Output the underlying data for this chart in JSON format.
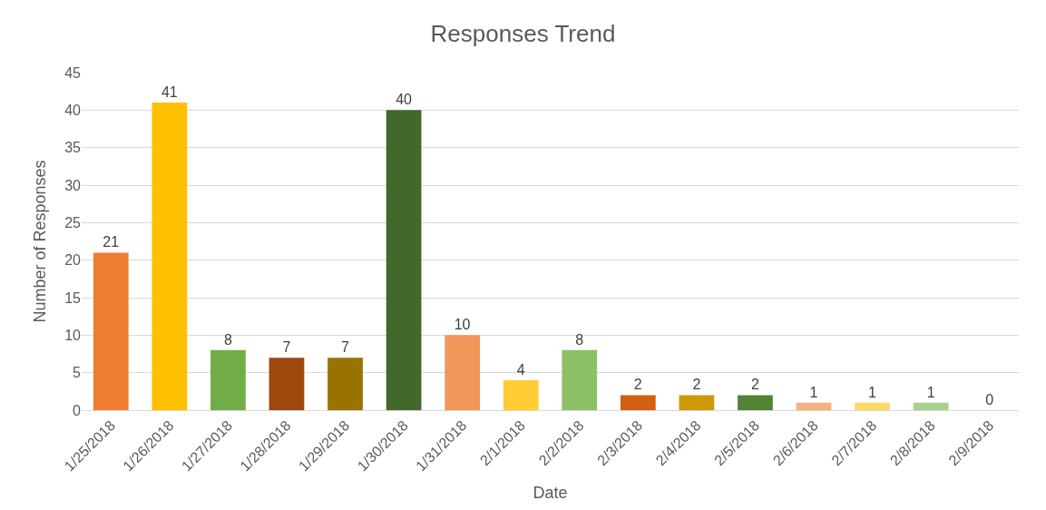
{
  "chart_data": {
    "type": "bar",
    "title": "Responses Trend",
    "xlabel": "Date",
    "ylabel": "Number of Responses",
    "categories": [
      "1/25/2018",
      "1/26/2018",
      "1/27/2018",
      "1/28/2018",
      "1/29/2018",
      "1/30/2018",
      "1/31/2018",
      "2/1/2018",
      "2/2/2018",
      "2/3/2018",
      "2/4/2018",
      "2/5/2018",
      "2/6/2018",
      "2/7/2018",
      "2/8/2018",
      "2/9/2018"
    ],
    "values": [
      21,
      41,
      8,
      7,
      7,
      40,
      10,
      4,
      8,
      2,
      2,
      2,
      1,
      1,
      1,
      0
    ],
    "colors": [
      "#ed7d31",
      "#ffc000",
      "#70ad47",
      "#9e480e",
      "#997300",
      "#43682b",
      "#f1975a",
      "#ffcd33",
      "#8cc168",
      "#d26012",
      "#cc9a06",
      "#548235",
      "#f4b183",
      "#ffd966",
      "#a9d18e",
      null
    ],
    "ylim": [
      0,
      45
    ],
    "yticks": [
      0,
      5,
      10,
      15,
      20,
      25,
      30,
      35,
      40,
      45
    ],
    "grid": "y",
    "data_labels": true,
    "legend": false
  }
}
